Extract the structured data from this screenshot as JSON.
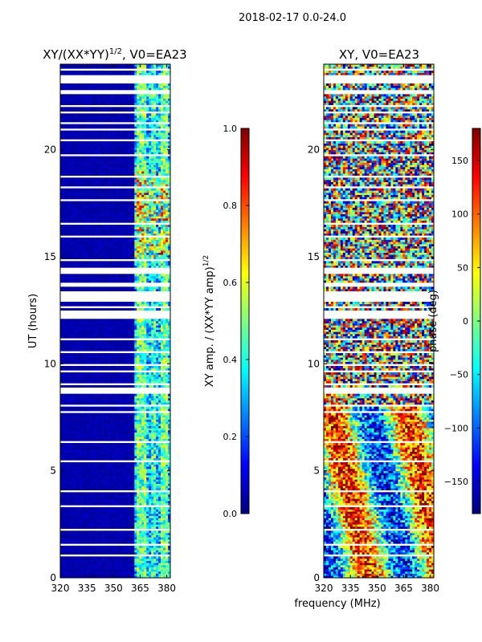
{
  "suptitle": "2018-02-17 0.0-24.0",
  "shared_xlabel": "frequency (MHz)",
  "colors": {
    "missing_row": "#ffffff",
    "jet": [
      "#00007f",
      "#0000ff",
      "#007fff",
      "#00ffff",
      "#7fff7f",
      "#ffff00",
      "#ff7f00",
      "#ff0000",
      "#7f0000"
    ]
  },
  "chart_data": [
    {
      "type": "heatmap",
      "title_main": "XY/(XX*YY)",
      "title_sup": "1/2",
      "title_rest": ", V0=EA23",
      "xlabel": "",
      "ylabel": "UT (hours)",
      "xlim": [
        320,
        382
      ],
      "ylim": [
        0,
        24
      ],
      "xticks": [
        320,
        335,
        350,
        365,
        380
      ],
      "yticks": [
        0,
        5,
        10,
        15,
        20
      ],
      "colorbar": {
        "label_main": "XY amp. / (XX*YY amp)",
        "label_sup": "1/2",
        "range": [
          0,
          1
        ],
        "ticks": [
          "0.0",
          "0.2",
          "0.4",
          "0.6",
          "0.8",
          "1.0"
        ],
        "tick_values": [
          0,
          0.2,
          0.4,
          0.6,
          0.8,
          1.0
        ]
      },
      "value_description": "Mostly near 0 (dark blue) for 320-362 MHz; bright bands 0.3-0.9 in 362-381 MHz; flagged rows are blank"
    },
    {
      "type": "heatmap",
      "title": "XY, V0=EA23",
      "xlabel": "frequency (MHz)",
      "ylabel": "",
      "xlim": [
        320,
        382
      ],
      "ylim": [
        0,
        24
      ],
      "xticks": [
        320,
        335,
        350,
        365,
        380
      ],
      "yticks": [
        0,
        5,
        10,
        15,
        20
      ],
      "colorbar": {
        "label": "phase (deg)",
        "range": [
          -180,
          180
        ],
        "ticks": [
          "−150",
          "−100",
          "−50",
          "0",
          "50",
          "100",
          "150"
        ],
        "tick_values": [
          -150,
          -100,
          -50,
          0,
          50,
          100,
          150
        ]
      },
      "value_description": "Phase spans -180 to 180 deg with noisy random structure; flagged rows blank"
    }
  ],
  "flagged_hours": [
    [
      23.1,
      23.5
    ],
    [
      22.6,
      22.8
    ],
    [
      22.0,
      22.1
    ],
    [
      21.7,
      21.8
    ],
    [
      21.2,
      21.3
    ],
    [
      20.4,
      20.5
    ],
    [
      19.7,
      19.8
    ],
    [
      18.7,
      18.8
    ],
    [
      17.6,
      17.7
    ],
    [
      16.5,
      16.6
    ],
    [
      15.9,
      16.0
    ],
    [
      14.8,
      14.9
    ],
    [
      14.2,
      14.5
    ],
    [
      13.6,
      13.8
    ],
    [
      12.9,
      13.4
    ],
    [
      12.1,
      12.5
    ],
    [
      11.1,
      11.2
    ],
    [
      10.5,
      10.6
    ],
    [
      9.9,
      10.0
    ],
    [
      9.0,
      9.1
    ],
    [
      8.6,
      8.9
    ],
    [
      8.0,
      8.1
    ],
    [
      7.7,
      7.8
    ],
    [
      6.3,
      6.4
    ],
    [
      4.0,
      4.1
    ],
    [
      3.3,
      3.4
    ],
    [
      2.2,
      2.3
    ],
    [
      1.5,
      1.6
    ],
    [
      1.0,
      1.1
    ],
    [
      23.7,
      23.8
    ],
    [
      20.9,
      21.0
    ],
    [
      18.2,
      18.3
    ],
    [
      12.6,
      12.7
    ],
    [
      9.6,
      9.7
    ],
    [
      5.4,
      5.5
    ]
  ]
}
